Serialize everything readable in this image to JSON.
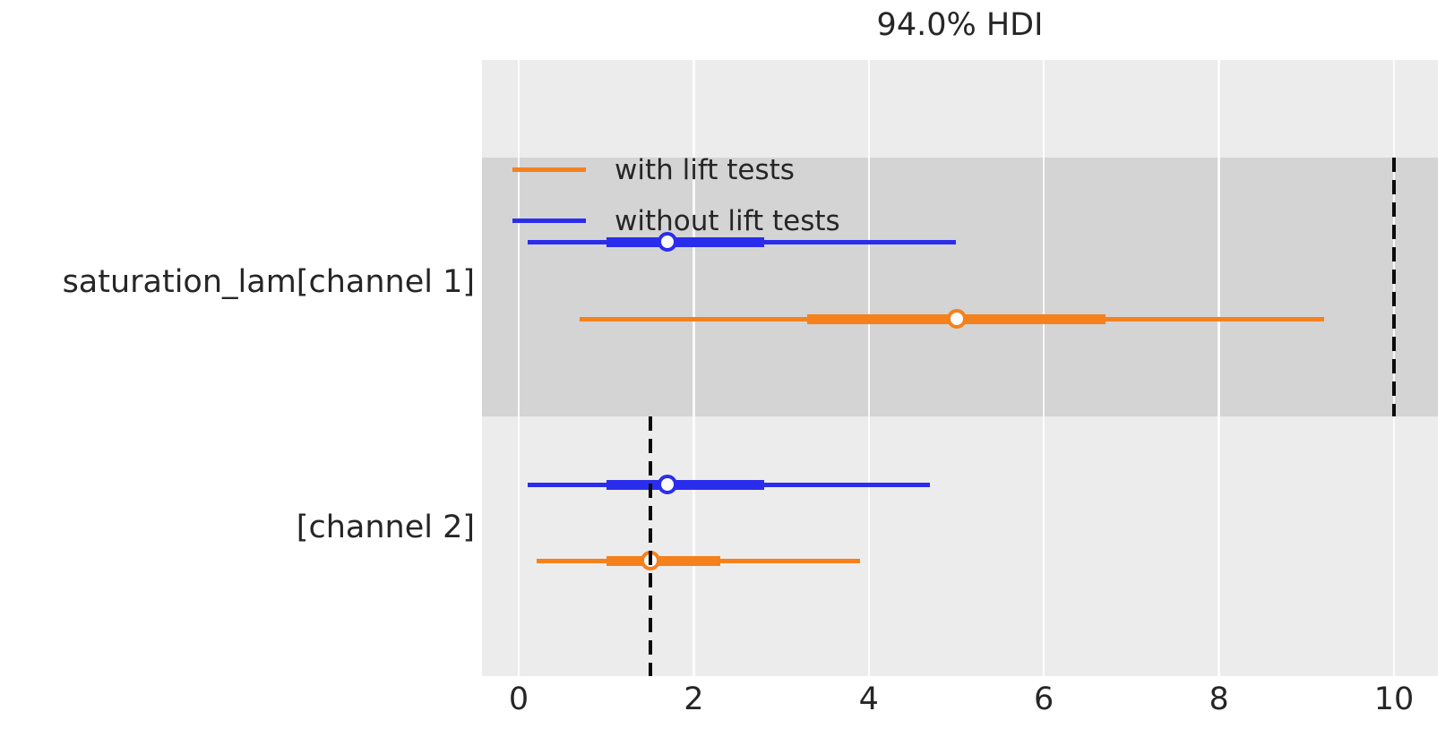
{
  "title": "94.0% HDI",
  "legend": {
    "items": [
      {
        "label": "with lift tests",
        "color": "#f5811d"
      },
      {
        "label": "without lift tests",
        "color": "#2a2eec"
      }
    ]
  },
  "colors": {
    "with_lift_tests": "#f5811d",
    "without_lift_tests": "#2a2eec",
    "plot_background": "#ececec",
    "shaded_band": "#d4d4d4",
    "reference_line": "#0b0b0b",
    "text": "#262626"
  },
  "chart_data": {
    "type": "forest",
    "title": "94.0% HDI",
    "hdi_probability": "94.0%",
    "xlim": [
      -0.42,
      10.5
    ],
    "x_ticks": [
      0,
      2,
      4,
      6,
      8,
      10
    ],
    "y_labels": [
      "saturation_lam[channel 1]",
      "[channel 2]"
    ],
    "grid": "white vertical gridlines on gray background",
    "legend_position": "upper left, no frame",
    "rows": [
      {
        "parameter": "saturation_lam[channel 1]",
        "series": "without lift tests",
        "color": "#2a2eec",
        "hdi_low": 0.1,
        "hdi_high": 5.0,
        "quartile_low": 1.0,
        "quartile_high": 2.8,
        "point": 1.7
      },
      {
        "parameter": "saturation_lam[channel 1]",
        "series": "with lift tests",
        "color": "#f5811d",
        "hdi_low": 0.7,
        "hdi_high": 9.2,
        "quartile_low": 3.3,
        "quartile_high": 6.7,
        "point": 5.0
      },
      {
        "parameter": "[channel 2]",
        "series": "without lift tests",
        "color": "#2a2eec",
        "hdi_low": 0.1,
        "hdi_high": 4.7,
        "quartile_low": 1.0,
        "quartile_high": 2.8,
        "point": 1.7
      },
      {
        "parameter": "[channel 2]",
        "series": "with lift tests",
        "color": "#f5811d",
        "hdi_low": 0.2,
        "hdi_high": 3.9,
        "quartile_low": 1.0,
        "quartile_high": 2.3,
        "point": 1.5
      }
    ],
    "reference_lines": [
      {
        "x": 10,
        "style": "dashed black",
        "region": "saturation_lam[channel 1]"
      },
      {
        "x": 1.5,
        "style": "dashed black",
        "region": "[channel 2]"
      }
    ],
    "shaded_band_region": "saturation_lam[channel 1]"
  }
}
